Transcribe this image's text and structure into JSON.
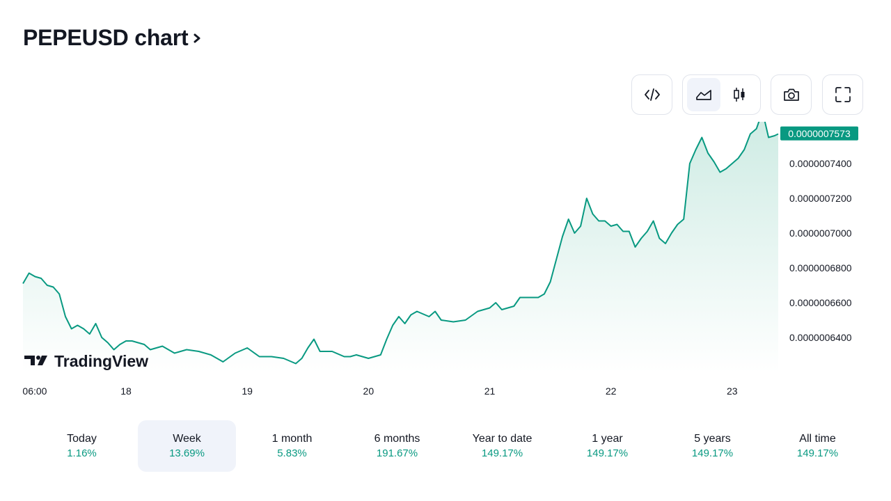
{
  "header": {
    "title": "PEPEUSD chart",
    "title_arrow_icon": "chevron-right-icon"
  },
  "toolbar": {
    "buttons": [
      {
        "name": "embed-button",
        "icon": "code-icon"
      },
      {
        "name": "chart-type-group",
        "items": [
          {
            "name": "area-chart-button",
            "icon": "area-chart-icon",
            "active": true
          },
          {
            "name": "candles-chart-button",
            "icon": "candles-icon",
            "active": false
          }
        ]
      },
      {
        "name": "snapshot-button",
        "icon": "camera-icon"
      },
      {
        "name": "fullscreen-button",
        "icon": "fullscreen-icon"
      }
    ]
  },
  "branding": {
    "logo_text": "TradingView"
  },
  "colors": {
    "line": "#089981",
    "area_top": "#cdebe3",
    "area_bottom": "#ffffff",
    "price_badge": "#089981",
    "text": "#131722",
    "axis_text": "#131722"
  },
  "tabs": [
    {
      "label": "Today",
      "change": "1.16%",
      "active": false
    },
    {
      "label": "Week",
      "change": "13.69%",
      "active": true
    },
    {
      "label": "1 month",
      "change": "5.83%",
      "active": false
    },
    {
      "label": "6 months",
      "change": "191.67%",
      "active": false
    },
    {
      "label": "Year to date",
      "change": "149.17%",
      "active": false
    },
    {
      "label": "1 year",
      "change": "149.17%",
      "active": false
    },
    {
      "label": "5 years",
      "change": "149.17%",
      "active": false
    },
    {
      "label": "All time",
      "change": "149.17%",
      "active": false
    }
  ],
  "chart_data": {
    "type": "area",
    "x_unit": "days",
    "x_ticks": [
      {
        "value": 17.25,
        "label": "06:00"
      },
      {
        "value": 18,
        "label": "18"
      },
      {
        "value": 19,
        "label": "19"
      },
      {
        "value": 20,
        "label": "20"
      },
      {
        "value": 21,
        "label": "21"
      },
      {
        "value": 22,
        "label": "22"
      },
      {
        "value": 23,
        "label": "23"
      }
    ],
    "y_ticks": [
      6.4e-07,
      6.6e-07,
      6.8e-07,
      7e-07,
      7.2e-07,
      7.4e-07
    ],
    "y_tick_labels": [
      "0.0000006400",
      "0.0000006600",
      "0.0000006800",
      "0.0000007000",
      "0.0000007200",
      "0.0000007400"
    ],
    "ylim": [
      6.2e-07,
      7.6e-07
    ],
    "xlim": [
      17.15,
      23.38
    ],
    "last_price": "0.0000007573",
    "last_value": 7.573e-07,
    "series": [
      {
        "x": [
          17.15,
          17.2,
          17.25,
          17.3,
          17.35,
          17.4,
          17.45,
          17.5,
          17.55,
          17.6,
          17.65,
          17.7,
          17.75,
          17.8,
          17.85,
          17.9,
          17.95,
          18.0,
          18.05,
          18.1,
          18.15,
          18.2,
          18.3,
          18.4,
          18.5,
          18.6,
          18.7,
          18.75,
          18.8,
          18.9,
          19.0,
          19.1,
          19.2,
          19.3,
          19.4,
          19.45,
          19.5,
          19.55,
          19.6,
          19.7,
          19.8,
          19.85,
          19.9,
          20.0,
          20.1,
          20.15,
          20.2,
          20.25,
          20.3,
          20.35,
          20.4,
          20.5,
          20.55,
          20.6,
          20.7,
          20.8,
          20.9,
          21.0,
          21.05,
          21.1,
          21.2,
          21.25,
          21.3,
          21.4,
          21.45,
          21.5,
          21.55,
          21.6,
          21.65,
          21.7,
          21.75,
          21.8,
          21.85,
          21.9,
          21.95,
          22.0,
          22.05,
          22.1,
          22.15,
          22.2,
          22.25,
          22.3,
          22.35,
          22.4,
          22.45,
          22.5,
          22.55,
          22.6,
          22.65,
          22.7,
          22.75,
          22.8,
          22.85,
          22.9,
          22.95,
          23.0,
          23.05,
          23.1,
          23.15,
          23.2,
          23.25,
          23.3,
          23.35,
          23.38
        ],
        "y": [
          6.71e-07,
          6.77e-07,
          6.75e-07,
          6.74e-07,
          6.7e-07,
          6.69e-07,
          6.65e-07,
          6.52e-07,
          6.45e-07,
          6.47e-07,
          6.45e-07,
          6.42e-07,
          6.48e-07,
          6.4e-07,
          6.37e-07,
          6.33e-07,
          6.36e-07,
          6.38e-07,
          6.38e-07,
          6.37e-07,
          6.36e-07,
          6.33e-07,
          6.35e-07,
          6.31e-07,
          6.33e-07,
          6.32e-07,
          6.3e-07,
          6.28e-07,
          6.26e-07,
          6.31e-07,
          6.34e-07,
          6.29e-07,
          6.29e-07,
          6.28e-07,
          6.25e-07,
          6.28e-07,
          6.34e-07,
          6.39e-07,
          6.32e-07,
          6.32e-07,
          6.29e-07,
          6.29e-07,
          6.3e-07,
          6.28e-07,
          6.3e-07,
          6.39e-07,
          6.47e-07,
          6.52e-07,
          6.48e-07,
          6.53e-07,
          6.55e-07,
          6.52e-07,
          6.55e-07,
          6.5e-07,
          6.49e-07,
          6.5e-07,
          6.55e-07,
          6.57e-07,
          6.6e-07,
          6.56e-07,
          6.58e-07,
          6.63e-07,
          6.63e-07,
          6.63e-07,
          6.65e-07,
          6.72e-07,
          6.85e-07,
          6.98e-07,
          7.08e-07,
          7e-07,
          7.04e-07,
          7.2e-07,
          7.11e-07,
          7.07e-07,
          7.07e-07,
          7.04e-07,
          7.05e-07,
          7.01e-07,
          7.01e-07,
          6.92e-07,
          6.97e-07,
          7.01e-07,
          7.07e-07,
          6.97e-07,
          6.94e-07,
          7e-07,
          7.05e-07,
          7.08e-07,
          7.4e-07,
          7.48e-07,
          7.55e-07,
          7.46e-07,
          7.41e-07,
          7.35e-07,
          7.37e-07,
          7.4e-07,
          7.43e-07,
          7.48e-07,
          7.57e-07,
          7.6e-07,
          7.7e-07,
          7.55e-07,
          7.56e-07,
          7.57e-07
        ]
      }
    ]
  }
}
